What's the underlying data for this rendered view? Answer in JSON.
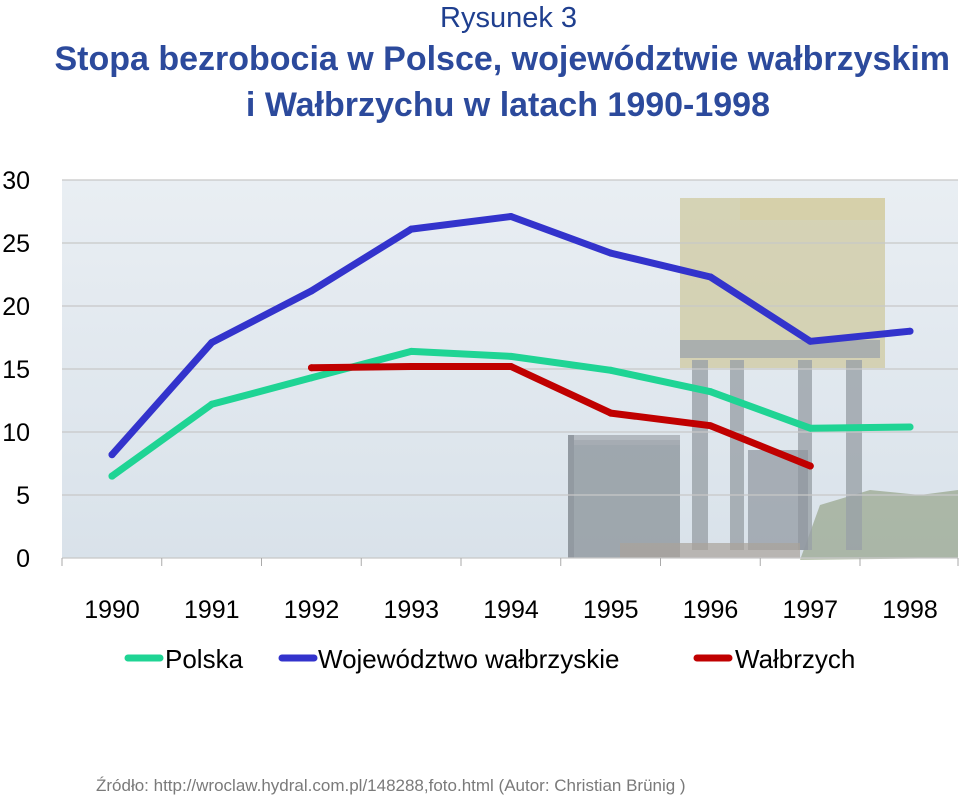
{
  "figure_label": "Rysunek 3",
  "title_line1": "Stopa bezrobocia w Polsce, województwie wałbrzyskim",
  "title_line2": "i Wałbrzychu w latach 1990-1998",
  "source": "Źródło: http://wroclaw.hydral.com.pl/148288,foto.html (Autor: Christian Brünig )",
  "colors": {
    "polska": "#1fd494",
    "wojewodztwo": "#3333cc",
    "walbrzych": "#c00000",
    "grid": "#c8c8c8",
    "axis_text": "#000000"
  },
  "chart_data": {
    "type": "line",
    "title": "Stopa bezrobocia w Polsce, województwie wałbrzyskim i Wałbrzychu w latach 1990-1998",
    "xlabel": "",
    "ylabel": "",
    "categories": [
      "1990",
      "1991",
      "1992",
      "1993",
      "1994",
      "1995",
      "1996",
      "1997",
      "1998"
    ],
    "ylim": [
      0,
      30
    ],
    "yticks": [
      "0",
      "5",
      "10",
      "15",
      "20",
      "25",
      "30"
    ],
    "grid": true,
    "legend_position": "bottom",
    "series": [
      {
        "name": "Polska",
        "color_key": "polska",
        "values": [
          6.5,
          12.2,
          14.3,
          16.4,
          16.0,
          14.9,
          13.2,
          10.3,
          10.4
        ]
      },
      {
        "name": "Województwo wałbrzyskie",
        "color_key": "wojewodztwo",
        "values": [
          8.2,
          17.1,
          21.2,
          26.1,
          27.1,
          24.2,
          22.3,
          17.2,
          18.0
        ]
      },
      {
        "name": "Wałbrzych",
        "color_key": "walbrzych",
        "values": [
          null,
          null,
          15.1,
          15.2,
          15.2,
          11.5,
          10.5,
          7.3,
          null
        ]
      }
    ]
  }
}
